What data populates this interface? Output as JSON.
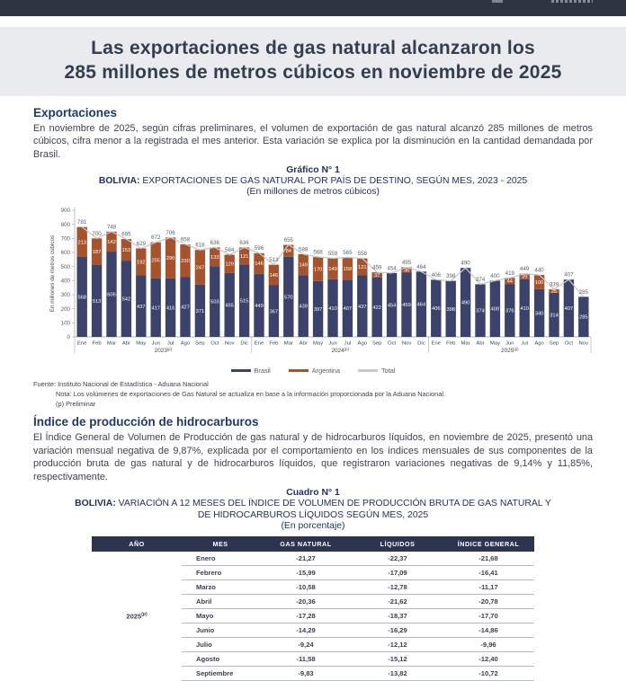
{
  "colors": {
    "topbar": "#2e3542",
    "title_band_bg": "#e9ebee",
    "heading_navy": "#1f3a68",
    "figure_navy": "#1f2f5c",
    "table_header_bg": "#2d3450",
    "bar_brasil": "#3c436a",
    "bar_argentina": "#a5532d",
    "total_line": "#c6c8ca"
  },
  "title": {
    "line1": "Las exportaciones de gas natural alcanzaron los",
    "line2": "285 millones de metros cúbicos en noviembre de 2025"
  },
  "sections": {
    "exportaciones": {
      "heading": "Exportaciones",
      "body": "En noviembre de 2025, según cifras preliminares, el volumen de exportación de gas natural alcanzó 285 millones de metros cúbicos, cifra menor a la registrada el mes anterior. Esta variación se explica por la disminución en la cantidad demandada por Brasil."
    },
    "indice": {
      "heading": "Índice de producción de hidrocarburos",
      "body": "El Índice General de Volumen de Producción de gas natural y de hidrocarburos líquidos, en noviembre de 2025, presentó una variación mensual negativa de 9,87%, explicada por el comportamiento en los índices mensuales de sus componentes de la producción bruta de gas natural y de hidrocarburos líquidos, que registraron variaciones negativas de 9,14% y 11,85%, respectivamente."
    }
  },
  "chart": {
    "label": "Gráfico N° 1",
    "title_bold": "BOLIVIA:",
    "title_rest": "EXPORTACIONES DE GAS NATURAL POR PAÍS DE DESTINO, SEGÚN MES, 2023 - 2025",
    "subtitle": "(En millones de metros cúbicos)"
  },
  "chart_data": {
    "type": "bar",
    "stacked": true,
    "title": "BOLIVIA: EXPORTACIONES DE GAS NATURAL POR PAÍS DE DESTINO, SEGÚN MES, 2023 - 2025",
    "subtitle": "(En millones de metros cúbicos)",
    "ylabel": "En millones de metros cúbicos",
    "ylim": [
      0,
      900
    ],
    "ytick_step": 100,
    "grid": false,
    "legend_position": "bottom",
    "categories": [
      "Ene",
      "Feb",
      "Mar",
      "Abr",
      "May",
      "Jun",
      "Jul",
      "Ago",
      "Sep",
      "Oct",
      "Nov",
      "Dic",
      "Ene",
      "Feb",
      "Mar",
      "Abr",
      "May",
      "Jun",
      "Jul",
      "Ago",
      "Sep",
      "Oct",
      "Nov",
      "Dic",
      "Ene",
      "Feb",
      "Mar",
      "Abr",
      "May",
      "Jun",
      "Jul",
      "Ago",
      "Sep",
      "Oct",
      "Nov"
    ],
    "year_groups": [
      {
        "label": "2023",
        "sup": "(p)",
        "count": 12
      },
      {
        "label": "2024",
        "sup": "(p)",
        "count": 12
      },
      {
        "label": "2025",
        "sup": "(p)",
        "count": 11
      }
    ],
    "series": [
      {
        "name": "Brasil",
        "type": "bar",
        "color": "#3c436a",
        "values": [
          568,
          513,
          606,
          542,
          437,
          417,
          416,
          427,
          371,
          503,
          455,
          515,
          449,
          367,
          570,
          439,
          397,
          410,
          407,
          437,
          422,
          454,
          459,
          464,
          406,
          398,
          490,
          374,
          400,
          376,
          410,
          340,
          314,
          407,
          285
        ]
      },
      {
        "name": "Argentina",
        "type": "bar",
        "color": "#a5532d",
        "values": [
          213,
          187,
          142,
          153,
          192,
          255,
          290,
          230,
          247,
          133,
          129,
          121,
          146,
          146,
          84,
          149,
          170,
          149,
          158,
          121,
          37,
          0,
          36,
          0,
          0,
          0,
          0,
          0,
          0,
          44,
          39,
          100,
          25,
          0,
          0
        ]
      },
      {
        "name": "Total",
        "type": "line",
        "color": "#c6c8ca",
        "values": [
          781,
          700,
          748,
          695,
          629,
          672,
          706,
          658,
          618,
          636,
          584,
          636,
          596,
          513,
          655,
          588,
          568,
          559,
          565,
          558,
          459,
          454,
          495,
          464,
          406,
          398,
          490,
          374,
          400,
          419,
          449,
          440,
          339,
          407,
          285
        ]
      }
    ]
  },
  "footnotes": {
    "fuente": "Fuente: Instituto Nacional de Estadística - Aduana Nacional",
    "nota": "Nota:  Los volúmenes de exportaciones de Gas Natural se actualiza en base a la información proporcionada por la Aduana Nacional.",
    "preliminar": "(p) Preliminar"
  },
  "table": {
    "label": "Cuadro N° 1",
    "title_bold": "BOLIVIA:",
    "title_rest": "VARIACIÓN A 12 MESES DEL ÍNDICE DE VOLUMEN DE PRODUCCIÓN BRUTA DE GAS NATURAL Y DE HIDROCARBUROS LÍQUIDOS SEGÚN MES, 2025",
    "subtitle": "(En porcentaje)",
    "columns": [
      "AÑO",
      "MES",
      "GAS NATURAL",
      "LÍQUIDOS",
      "ÍNDICE  GENERAL"
    ],
    "year": "2025",
    "year_sup": "(p)",
    "rows": [
      {
        "mes": "Enero",
        "gas": "-21,27",
        "liq": "-22,37",
        "ind": "-21,68"
      },
      {
        "mes": "Febrero",
        "gas": "-15,99",
        "liq": "-17,09",
        "ind": "-16,41"
      },
      {
        "mes": "Marzo",
        "gas": "-10,58",
        "liq": "-12,78",
        "ind": "-11,17"
      },
      {
        "mes": "Abril",
        "gas": "-20,36",
        "liq": "-21,62",
        "ind": "-20,78"
      },
      {
        "mes": "Mayo",
        "gas": "-17,28",
        "liq": "-18,37",
        "ind": "-17,70"
      },
      {
        "mes": "Junio",
        "gas": "-14,29",
        "liq": "-16,29",
        "ind": "-14,86"
      },
      {
        "mes": "Julio",
        "gas": "-9,24",
        "liq": "-12,12",
        "ind": "-9,96"
      },
      {
        "mes": "Agosto",
        "gas": "-11,58",
        "liq": "-15,12",
        "ind": "-12,40"
      },
      {
        "mes": "Septiembre",
        "gas": "-9,83",
        "liq": "-13,82",
        "ind": "-10,72"
      }
    ]
  }
}
